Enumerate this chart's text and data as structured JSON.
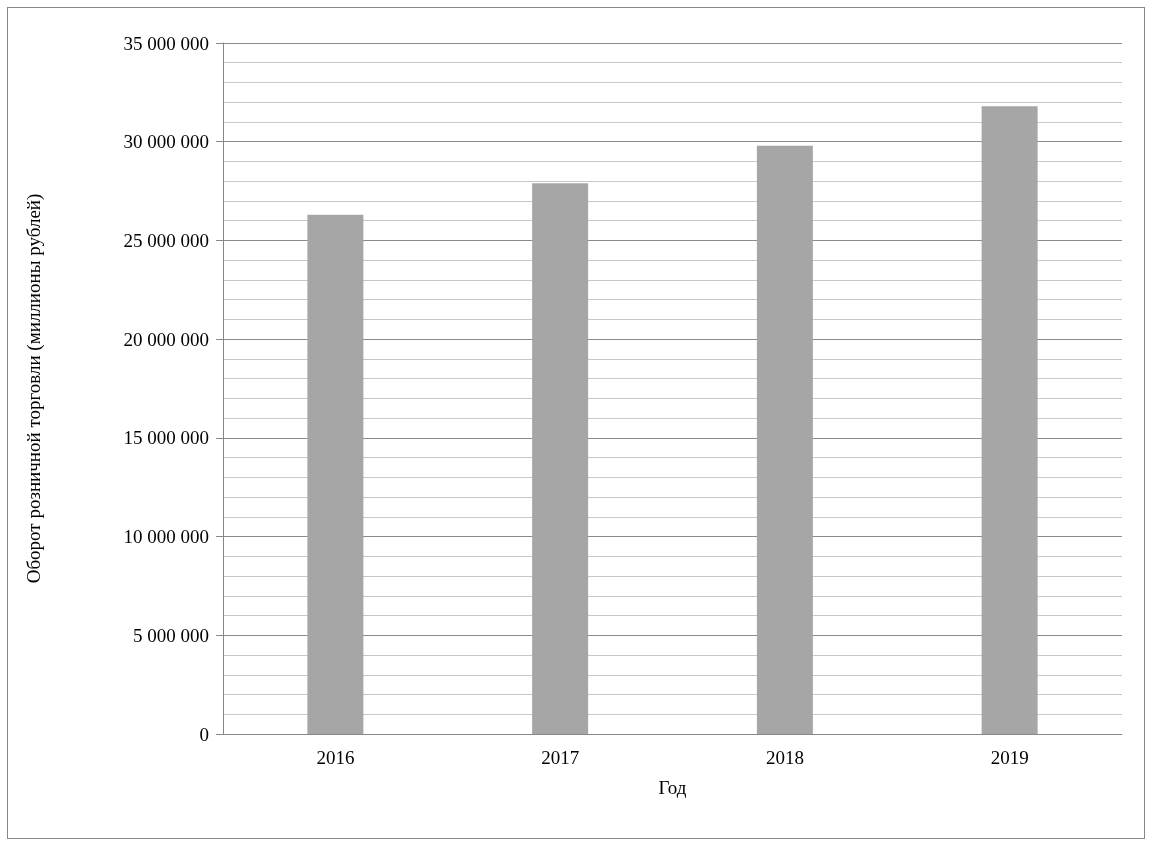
{
  "chart_data": {
    "type": "bar",
    "xlabel": "Год",
    "ylabel": "Оборот розничной торговли (миллионы рублей)",
    "categories": [
      "2016",
      "2017",
      "2018",
      "2019"
    ],
    "values": [
      26300000,
      27900000,
      29800000,
      31800000
    ],
    "color": "#a6a6a6",
    "ylim": [
      0,
      35000000
    ],
    "yticks": [
      {
        "value": 0,
        "label": "0"
      },
      {
        "value": 5000000,
        "label": "5 000 000"
      },
      {
        "value": 10000000,
        "label": "10 000 000"
      },
      {
        "value": 15000000,
        "label": "15 000 000"
      },
      {
        "value": 20000000,
        "label": "20 000 000"
      },
      {
        "value": 25000000,
        "label": "25 000 000"
      },
      {
        "value": 30000000,
        "label": "30 000 000"
      },
      {
        "value": 35000000,
        "label": "35 000 000"
      }
    ],
    "grid": "y"
  }
}
